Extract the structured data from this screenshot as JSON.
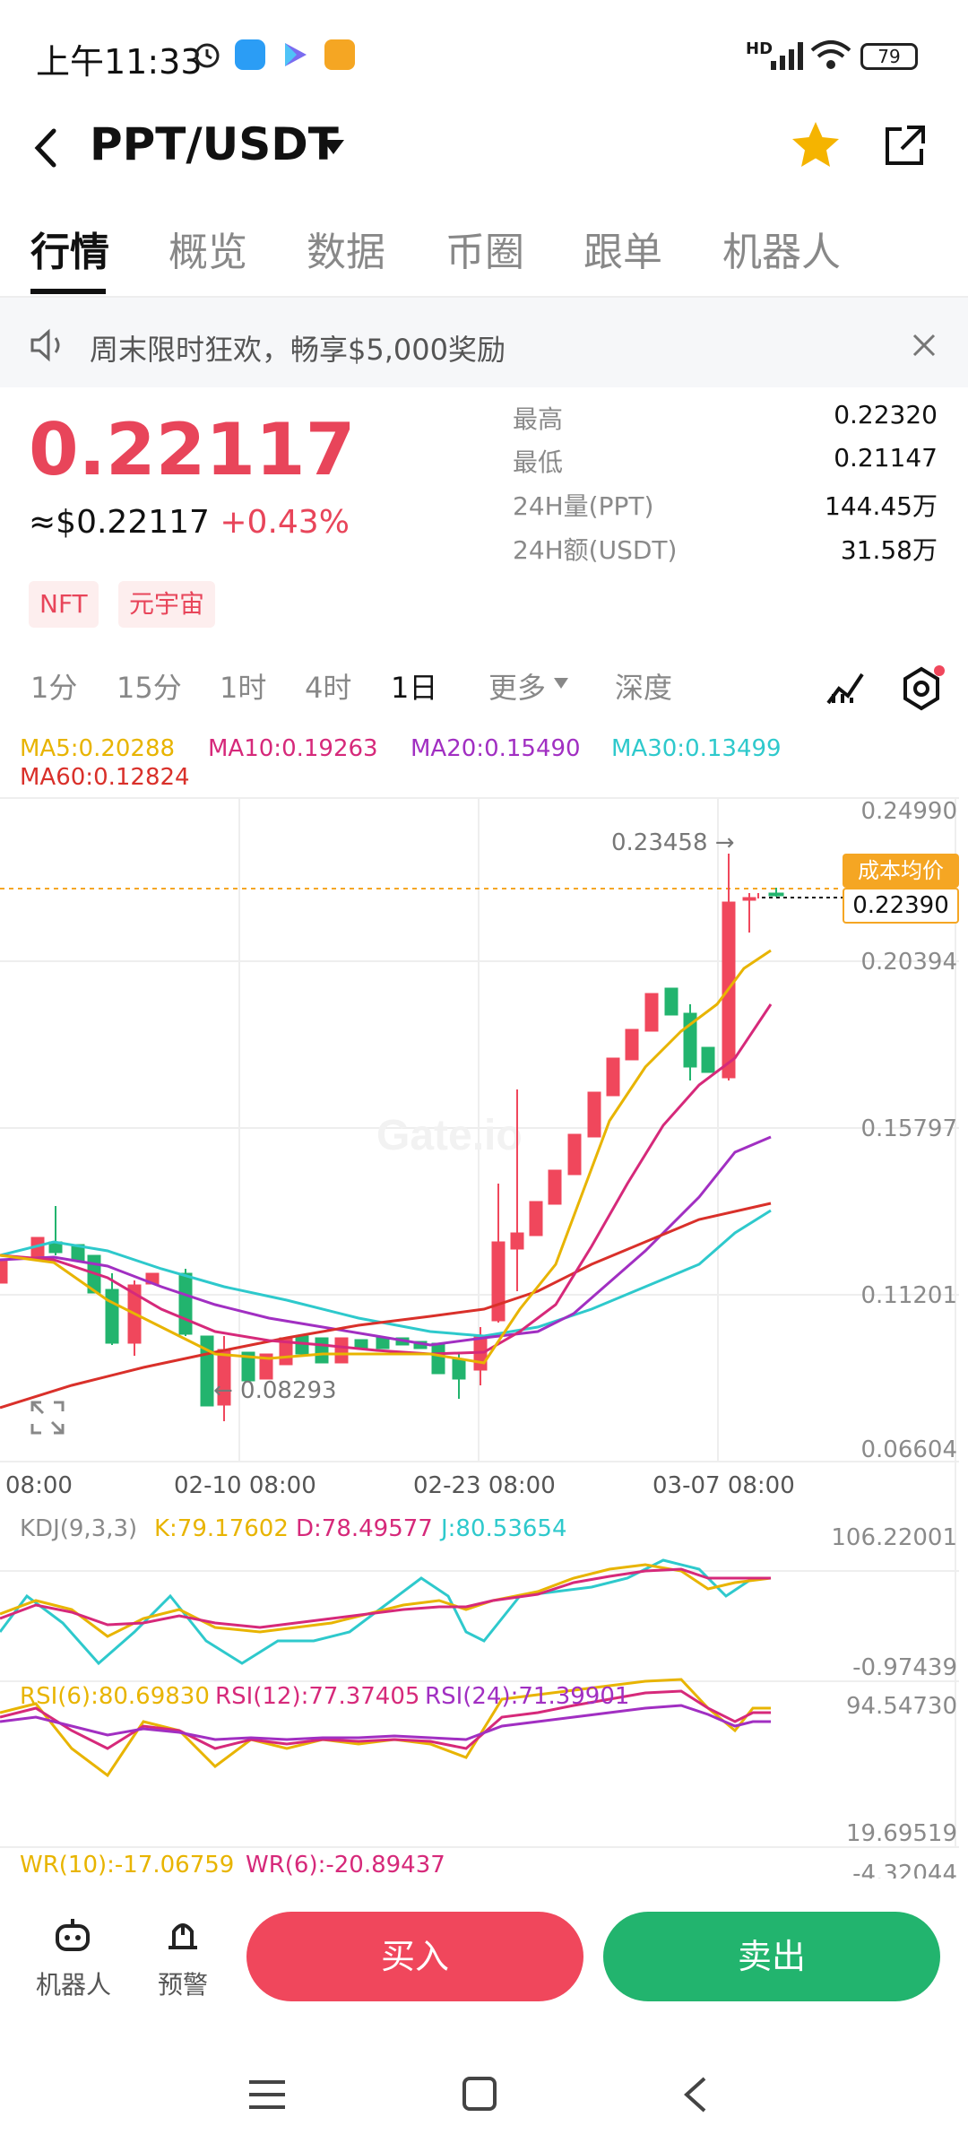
{
  "status_bar": {
    "time": "上午11:33",
    "network": "HD",
    "battery": "79"
  },
  "header": {
    "title": "PPT/USDT"
  },
  "tabs": [
    "行情",
    "概览",
    "数据",
    "币圈",
    "跟单",
    "机器人"
  ],
  "banner": {
    "text": "周末限时狂欢，畅享$5,000奖励"
  },
  "price": {
    "last": "0.22117",
    "usd": "≈$0.22117",
    "change": "+0.43%"
  },
  "stats": [
    {
      "label": "最高",
      "value": "0.22320"
    },
    {
      "label": "最低",
      "value": "0.21147"
    },
    {
      "label": "24H量(PPT)",
      "value": "144.45万"
    },
    {
      "label": "24H额(USDT)",
      "value": "31.58万"
    }
  ],
  "tags": [
    "NFT",
    "元宇宙"
  ],
  "timeframes": [
    "1分",
    "15分",
    "1时",
    "4时",
    "1日",
    "更多",
    "深度"
  ],
  "ma_legend": {
    "ma5": "MA5:0.20288",
    "ma10": "MA10:0.19263",
    "ma20": "MA20:0.15490",
    "ma30": "MA30:0.13499",
    "ma60": "MA60:0.12824"
  },
  "chart": {
    "y_ticks": [
      "0.24990",
      "0.20394",
      "0.15797",
      "0.11201",
      "0.06604"
    ],
    "x_ticks": [
      "08:00",
      "02-10 08:00",
      "02-23 08:00",
      "03-07 08:00"
    ],
    "high_label": "0.23458 →",
    "low_label": "← 0.08293",
    "cost_label": "成本均价",
    "cost_value": "0.22390",
    "watermark": "Gate.io"
  },
  "kdj": {
    "title": "KDJ(9,3,3)",
    "k": "K:79.17602",
    "d": "D:78.49577",
    "j": "J:80.53654",
    "top": "106.22001",
    "bottom": "-0.97439"
  },
  "rsi": {
    "r6": "RSI(6):80.69830",
    "r12": "RSI(12):77.37405",
    "r24": "RSI(24):71.39901",
    "top": "94.54730",
    "bottom": "19.69519"
  },
  "wr": {
    "w10": "WR(10):-17.06759",
    "w6": "WR(6):-20.89437",
    "top": "-4.32044"
  },
  "bottom_bar": {
    "robot": "机器人",
    "alert": "预警",
    "buy": "买入",
    "sell": "卖出"
  },
  "colors": {
    "up": "#f0475c",
    "down": "#22b46e",
    "ma5": "#e8b400",
    "ma10": "#d6297a",
    "ma20": "#a12fc2",
    "ma30": "#2ec9cc",
    "ma60": "#d9302a"
  }
}
